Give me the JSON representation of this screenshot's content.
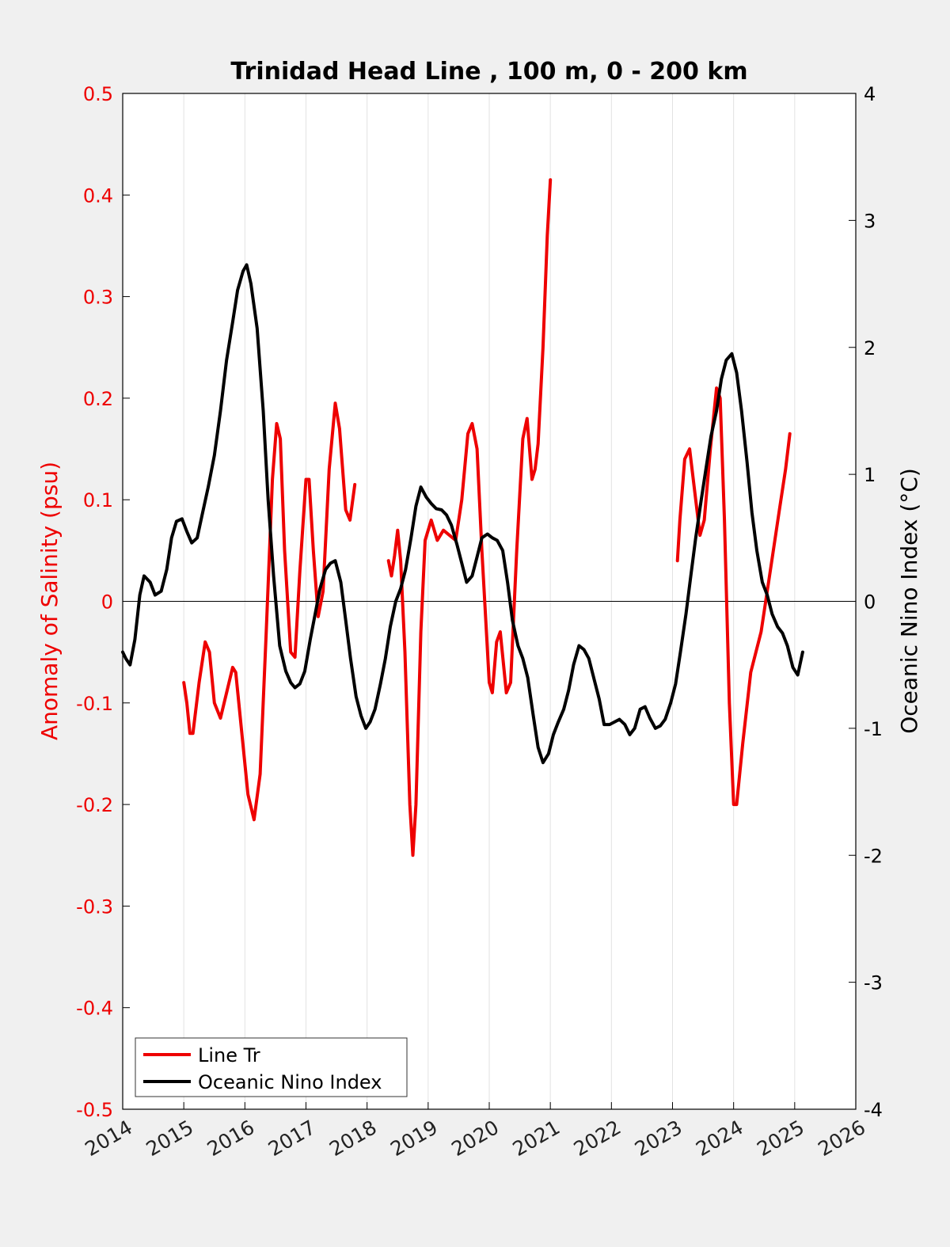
{
  "chart_data": {
    "type": "line",
    "title": "Trinidad Head Line , 100 m, 0 - 200 km",
    "xlabel": "",
    "ylabel_left": "Anomaly of Salinity (psu)",
    "ylabel_right": "Oceanic Nino Index (°C)",
    "xlim": [
      2014,
      2026
    ],
    "ylim_left": [
      -0.5,
      0.5
    ],
    "ylim_right": [
      -4,
      4
    ],
    "x_ticks": [
      "2014",
      "2015",
      "2016",
      "2017",
      "2018",
      "2019",
      "2020",
      "2021",
      "2022",
      "2023",
      "2024",
      "2025",
      "2026"
    ],
    "y_ticks_left": [
      "0.5",
      "0.4",
      "0.3",
      "0.2",
      "0.1",
      "0",
      "-0.1",
      "-0.2",
      "-0.3",
      "-0.4",
      "-0.5"
    ],
    "y_ticks_right": [
      "4",
      "3",
      "2",
      "1",
      "0",
      "-1",
      "-2",
      "-3",
      "-4"
    ],
    "grid": "vertical",
    "zero_line": true,
    "legend": {
      "position": "bottom-left",
      "entries": [
        "Line Tr",
        "Oceanic Nino Index"
      ]
    },
    "colors": {
      "salinity": "#ee0000",
      "oni": "#000000",
      "text_left": "#ee0000"
    },
    "series": [
      {
        "name": "Line Tr",
        "axis": "left",
        "segments": [
          [
            [
              2015.0,
              -0.08
            ],
            [
              2015.05,
              -0.1
            ],
            [
              2015.1,
              -0.13
            ],
            [
              2015.15,
              -0.13
            ],
            [
              2015.25,
              -0.08
            ],
            [
              2015.35,
              -0.04
            ],
            [
              2015.42,
              -0.05
            ],
            [
              2015.5,
              -0.1
            ],
            [
              2015.6,
              -0.115
            ],
            [
              2015.7,
              -0.09
            ],
            [
              2015.8,
              -0.065
            ],
            [
              2015.85,
              -0.07
            ],
            [
              2015.95,
              -0.13
            ],
            [
              2016.05,
              -0.19
            ],
            [
              2016.15,
              -0.215
            ],
            [
              2016.25,
              -0.17
            ],
            [
              2016.35,
              -0.03
            ],
            [
              2016.45,
              0.12
            ],
            [
              2016.52,
              0.175
            ],
            [
              2016.58,
              0.16
            ],
            [
              2016.65,
              0.05
            ],
            [
              2016.75,
              -0.05
            ],
            [
              2016.82,
              -0.055
            ],
            [
              2016.9,
              0.03
            ],
            [
              2017.0,
              0.12
            ],
            [
              2017.05,
              0.12
            ],
            [
              2017.12,
              0.05
            ],
            [
              2017.2,
              -0.015
            ],
            [
              2017.28,
              0.01
            ],
            [
              2017.38,
              0.13
            ],
            [
              2017.48,
              0.195
            ],
            [
              2017.55,
              0.17
            ],
            [
              2017.65,
              0.09
            ],
            [
              2017.72,
              0.08
            ],
            [
              2017.8,
              0.115
            ]
          ],
          [
            [
              2018.35,
              0.04
            ],
            [
              2018.4,
              0.025
            ],
            [
              2018.45,
              0.045
            ],
            [
              2018.5,
              0.07
            ],
            [
              2018.55,
              0.04
            ],
            [
              2018.62,
              -0.05
            ],
            [
              2018.7,
              -0.2
            ],
            [
              2018.75,
              -0.25
            ],
            [
              2018.8,
              -0.2
            ],
            [
              2018.88,
              -0.03
            ],
            [
              2018.95,
              0.06
            ],
            [
              2019.05,
              0.08
            ],
            [
              2019.15,
              0.06
            ],
            [
              2019.25,
              0.07
            ],
            [
              2019.35,
              0.065
            ],
            [
              2019.45,
              0.06
            ],
            [
              2019.55,
              0.1
            ],
            [
              2019.65,
              0.165
            ],
            [
              2019.72,
              0.175
            ],
            [
              2019.8,
              0.15
            ],
            [
              2019.88,
              0.05
            ],
            [
              2020.0,
              -0.08
            ],
            [
              2020.05,
              -0.09
            ],
            [
              2020.12,
              -0.04
            ],
            [
              2020.18,
              -0.03
            ],
            [
              2020.28,
              -0.09
            ],
            [
              2020.35,
              -0.08
            ],
            [
              2020.45,
              0.05
            ],
            [
              2020.55,
              0.16
            ],
            [
              2020.62,
              0.18
            ],
            [
              2020.7,
              0.12
            ],
            [
              2020.75,
              0.13
            ],
            [
              2020.8,
              0.155
            ],
            [
              2020.88,
              0.25
            ],
            [
              2020.95,
              0.36
            ],
            [
              2021.0,
              0.415
            ]
          ],
          [
            [
              2023.08,
              0.04
            ],
            [
              2023.12,
              0.08
            ],
            [
              2023.2,
              0.14
            ],
            [
              2023.28,
              0.15
            ],
            [
              2023.38,
              0.1
            ],
            [
              2023.45,
              0.065
            ],
            [
              2023.52,
              0.08
            ],
            [
              2023.62,
              0.15
            ],
            [
              2023.72,
              0.21
            ],
            [
              2023.78,
              0.2
            ],
            [
              2023.85,
              0.08
            ],
            [
              2023.93,
              -0.1
            ],
            [
              2024.0,
              -0.2
            ],
            [
              2024.05,
              -0.2
            ],
            [
              2024.15,
              -0.14
            ],
            [
              2024.28,
              -0.07
            ],
            [
              2024.45,
              -0.03
            ],
            [
              2024.6,
              0.03
            ],
            [
              2024.75,
              0.09
            ],
            [
              2024.85,
              0.13
            ],
            [
              2024.92,
              0.165
            ]
          ]
        ]
      },
      {
        "name": "Oceanic Nino Index",
        "axis": "right",
        "points": [
          [
            2014.0,
            -0.4
          ],
          [
            2014.05,
            -0.45
          ],
          [
            2014.12,
            -0.5
          ],
          [
            2014.2,
            -0.3
          ],
          [
            2014.28,
            0.05
          ],
          [
            2014.35,
            0.2
          ],
          [
            2014.45,
            0.15
          ],
          [
            2014.53,
            0.05
          ],
          [
            2014.63,
            0.08
          ],
          [
            2014.72,
            0.25
          ],
          [
            2014.8,
            0.5
          ],
          [
            2014.88,
            0.63
          ],
          [
            2014.97,
            0.65
          ],
          [
            2015.05,
            0.55
          ],
          [
            2015.13,
            0.46
          ],
          [
            2015.22,
            0.5
          ],
          [
            2015.3,
            0.68
          ],
          [
            2015.4,
            0.9
          ],
          [
            2015.5,
            1.15
          ],
          [
            2015.6,
            1.5
          ],
          [
            2015.7,
            1.9
          ],
          [
            2015.8,
            2.2
          ],
          [
            2015.88,
            2.45
          ],
          [
            2015.97,
            2.6
          ],
          [
            2016.03,
            2.65
          ],
          [
            2016.1,
            2.5
          ],
          [
            2016.2,
            2.15
          ],
          [
            2016.3,
            1.5
          ],
          [
            2016.38,
            0.8
          ],
          [
            2016.47,
            0.2
          ],
          [
            2016.57,
            -0.35
          ],
          [
            2016.67,
            -0.55
          ],
          [
            2016.75,
            -0.64
          ],
          [
            2016.82,
            -0.68
          ],
          [
            2016.9,
            -0.65
          ],
          [
            2016.98,
            -0.55
          ],
          [
            2017.07,
            -0.3
          ],
          [
            2017.15,
            -0.1
          ],
          [
            2017.23,
            0.1
          ],
          [
            2017.32,
            0.25
          ],
          [
            2017.4,
            0.3
          ],
          [
            2017.48,
            0.32
          ],
          [
            2017.57,
            0.15
          ],
          [
            2017.65,
            -0.15
          ],
          [
            2017.73,
            -0.45
          ],
          [
            2017.82,
            -0.75
          ],
          [
            2017.9,
            -0.9
          ],
          [
            2017.98,
            -1.0
          ],
          [
            2018.05,
            -0.95
          ],
          [
            2018.13,
            -0.85
          ],
          [
            2018.22,
            -0.65
          ],
          [
            2018.3,
            -0.45
          ],
          [
            2018.38,
            -0.2
          ],
          [
            2018.47,
            0.0
          ],
          [
            2018.55,
            0.1
          ],
          [
            2018.63,
            0.25
          ],
          [
            2018.72,
            0.5
          ],
          [
            2018.8,
            0.75
          ],
          [
            2018.88,
            0.9
          ],
          [
            2018.97,
            0.82
          ],
          [
            2019.05,
            0.77
          ],
          [
            2019.13,
            0.73
          ],
          [
            2019.22,
            0.72
          ],
          [
            2019.3,
            0.68
          ],
          [
            2019.38,
            0.6
          ],
          [
            2019.47,
            0.45
          ],
          [
            2019.55,
            0.3
          ],
          [
            2019.63,
            0.15
          ],
          [
            2019.72,
            0.2
          ],
          [
            2019.8,
            0.35
          ],
          [
            2019.88,
            0.5
          ],
          [
            2019.97,
            0.53
          ],
          [
            2020.05,
            0.5
          ],
          [
            2020.13,
            0.48
          ],
          [
            2020.22,
            0.4
          ],
          [
            2020.3,
            0.15
          ],
          [
            2020.38,
            -0.15
          ],
          [
            2020.47,
            -0.35
          ],
          [
            2020.55,
            -0.45
          ],
          [
            2020.63,
            -0.6
          ],
          [
            2020.72,
            -0.9
          ],
          [
            2020.8,
            -1.15
          ],
          [
            2020.88,
            -1.27
          ],
          [
            2020.97,
            -1.2
          ],
          [
            2021.05,
            -1.05
          ],
          [
            2021.13,
            -0.95
          ],
          [
            2021.22,
            -0.85
          ],
          [
            2021.3,
            -0.7
          ],
          [
            2021.38,
            -0.5
          ],
          [
            2021.47,
            -0.35
          ],
          [
            2021.55,
            -0.38
          ],
          [
            2021.63,
            -0.45
          ],
          [
            2021.72,
            -0.62
          ],
          [
            2021.8,
            -0.77
          ],
          [
            2021.88,
            -0.97
          ],
          [
            2021.97,
            -0.97
          ],
          [
            2022.05,
            -0.95
          ],
          [
            2022.13,
            -0.93
          ],
          [
            2022.22,
            -0.97
          ],
          [
            2022.3,
            -1.05
          ],
          [
            2022.38,
            -1.0
          ],
          [
            2022.47,
            -0.85
          ],
          [
            2022.55,
            -0.83
          ],
          [
            2022.63,
            -0.92
          ],
          [
            2022.72,
            -1.0
          ],
          [
            2022.8,
            -0.98
          ],
          [
            2022.88,
            -0.93
          ],
          [
            2022.97,
            -0.8
          ],
          [
            2023.05,
            -0.65
          ],
          [
            2023.13,
            -0.4
          ],
          [
            2023.22,
            -0.1
          ],
          [
            2023.3,
            0.2
          ],
          [
            2023.38,
            0.5
          ],
          [
            2023.47,
            0.8
          ],
          [
            2023.55,
            1.05
          ],
          [
            2023.63,
            1.3
          ],
          [
            2023.72,
            1.5
          ],
          [
            2023.8,
            1.75
          ],
          [
            2023.88,
            1.9
          ],
          [
            2023.97,
            1.95
          ],
          [
            2024.05,
            1.8
          ],
          [
            2024.13,
            1.5
          ],
          [
            2024.22,
            1.1
          ],
          [
            2024.3,
            0.7
          ],
          [
            2024.38,
            0.4
          ],
          [
            2024.47,
            0.15
          ],
          [
            2024.55,
            0.05
          ],
          [
            2024.63,
            -0.1
          ],
          [
            2024.72,
            -0.2
          ],
          [
            2024.8,
            -0.25
          ],
          [
            2024.88,
            -0.35
          ],
          [
            2024.97,
            -0.52
          ],
          [
            2025.05,
            -0.58
          ],
          [
            2025.13,
            -0.4
          ]
        ]
      }
    ]
  }
}
